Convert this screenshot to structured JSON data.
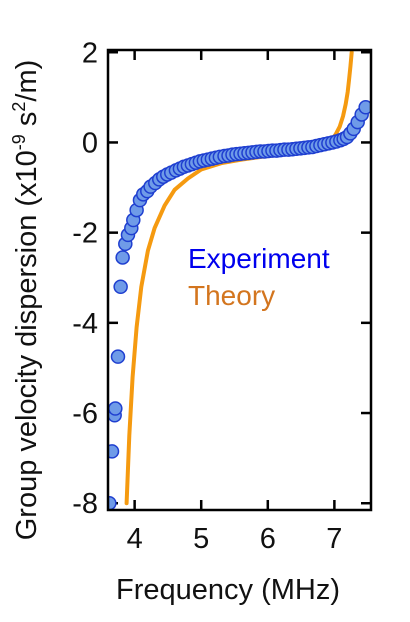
{
  "chart_data": {
    "type": "scatter",
    "title": "",
    "xlabel": "Frequency (MHz)",
    "ylabel": {
      "main": "Group velocity dispersion (x10",
      "exp1": "-9",
      "mid": " s",
      "exp2": "2",
      "tail": "/m)"
    },
    "xlim": [
      3.6,
      7.55
    ],
    "ylim": [
      -8.15,
      2.05
    ],
    "x_ticks": [
      4,
      5,
      6,
      7
    ],
    "x_tick_labels": [
      "4",
      "5",
      "6",
      "7"
    ],
    "y_ticks": [
      2,
      0,
      -2,
      -4,
      -6,
      -8
    ],
    "y_tick_labels": [
      "2",
      "0",
      "-2",
      "-4",
      "-6",
      "-8"
    ],
    "grid": false,
    "legend": "right-middle, inside plot",
    "series": [
      {
        "name": "Experiment",
        "kind": "scatter",
        "color": "#0000ee",
        "marker_fill": "#6f9be8",
        "marker_edge": "#1f3fd0",
        "x": [
          3.62,
          3.66,
          3.7,
          3.71,
          3.75,
          3.79,
          3.82,
          3.86,
          3.9,
          3.95,
          3.98,
          4.03,
          4.08,
          4.13,
          4.19,
          4.24,
          4.31,
          4.37,
          4.43,
          4.49,
          4.55,
          4.62,
          4.68,
          4.74,
          4.8,
          4.86,
          4.92,
          4.98,
          5.04,
          5.1,
          5.16,
          5.22,
          5.28,
          5.35,
          5.41,
          5.47,
          5.53,
          5.59,
          5.65,
          5.71,
          5.77,
          5.83,
          5.89,
          5.95,
          6.01,
          6.07,
          6.13,
          6.19,
          6.25,
          6.31,
          6.37,
          6.43,
          6.49,
          6.55,
          6.61,
          6.67,
          6.73,
          6.79,
          6.85,
          6.91,
          6.97,
          7.03,
          7.09,
          7.14,
          7.19,
          7.24,
          7.29,
          7.35,
          7.41,
          7.47
        ],
        "y": [
          -8.0,
          -6.85,
          -6.05,
          -5.9,
          -4.75,
          -3.2,
          -2.55,
          -2.25,
          -2.05,
          -1.9,
          -1.72,
          -1.5,
          -1.28,
          -1.15,
          -1.08,
          -0.98,
          -0.9,
          -0.82,
          -0.76,
          -0.71,
          -0.67,
          -0.62,
          -0.58,
          -0.54,
          -0.51,
          -0.48,
          -0.45,
          -0.42,
          -0.4,
          -0.38,
          -0.36,
          -0.34,
          -0.32,
          -0.3,
          -0.29,
          -0.27,
          -0.26,
          -0.25,
          -0.24,
          -0.23,
          -0.22,
          -0.21,
          -0.2,
          -0.2,
          -0.19,
          -0.18,
          -0.18,
          -0.17,
          -0.16,
          -0.16,
          -0.15,
          -0.14,
          -0.13,
          -0.12,
          -0.11,
          -0.1,
          -0.08,
          -0.06,
          -0.04,
          -0.02,
          0.0,
          0.02,
          0.05,
          0.08,
          0.12,
          0.2,
          0.3,
          0.45,
          0.62,
          0.78
        ]
      },
      {
        "name": "Theory",
        "kind": "line",
        "color": "#f59a10",
        "label_color": "#d3751e",
        "x": [
          3.88,
          3.92,
          3.97,
          4.03,
          4.1,
          4.2,
          4.3,
          4.45,
          4.6,
          4.8,
          5.0,
          5.3,
          5.6,
          5.9,
          6.2,
          6.5,
          6.7,
          6.85,
          6.95,
          7.02,
          7.08,
          7.13,
          7.17,
          7.2,
          7.22,
          7.24,
          7.26
        ],
        "y": [
          -8.0,
          -6.5,
          -5.2,
          -4.1,
          -3.2,
          -2.4,
          -1.9,
          -1.4,
          -1.05,
          -0.8,
          -0.6,
          -0.46,
          -0.38,
          -0.32,
          -0.27,
          -0.2,
          -0.13,
          -0.04,
          0.05,
          0.18,
          0.35,
          0.58,
          0.85,
          1.12,
          1.38,
          1.68,
          2.0
        ]
      }
    ]
  }
}
